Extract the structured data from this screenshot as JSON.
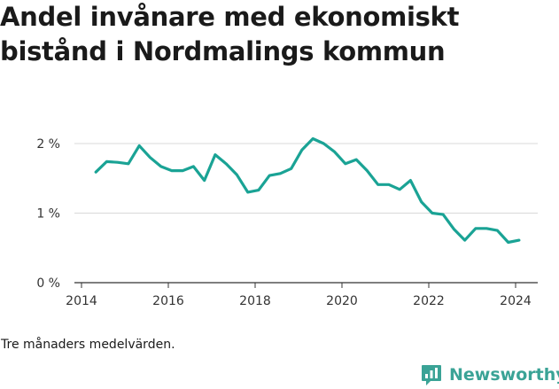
{
  "chart_data": {
    "type": "line",
    "title": "Andel invånare med ekonomiskt bistånd i Nordmalings kommun",
    "xlabel": "",
    "ylabel": "",
    "x_ticks": [
      "2014",
      "2016",
      "2018",
      "2020",
      "2022",
      "2024"
    ],
    "y_ticks": [
      "0 %",
      "1 %",
      "2 %"
    ],
    "xlim": [
      2014,
      2024.6
    ],
    "ylim": [
      0,
      2.2
    ],
    "grid": "horizontal",
    "line_color": "#1aa395",
    "series": [
      {
        "x": [
          2014.33,
          2014.58,
          2014.83,
          2015.08,
          2015.33,
          2015.58,
          2015.83,
          2016.08,
          2016.33,
          2016.58,
          2016.83,
          2017.08,
          2017.33,
          2017.58,
          2017.83,
          2018.08,
          2018.33,
          2018.58,
          2018.83,
          2019.08,
          2019.33,
          2019.58,
          2019.83,
          2020.08,
          2020.33,
          2020.58,
          2020.83,
          2021.08,
          2021.33,
          2021.58,
          2021.83,
          2022.08,
          2022.33,
          2022.58,
          2022.83,
          2023.08,
          2023.33,
          2023.58,
          2023.83,
          2024.08
        ],
        "values": [
          1.59,
          1.74,
          1.73,
          1.71,
          1.97,
          1.8,
          1.67,
          1.61,
          1.61,
          1.67,
          1.47,
          1.84,
          1.71,
          1.55,
          1.3,
          1.33,
          1.54,
          1.57,
          1.64,
          1.91,
          2.07,
          2.0,
          1.88,
          1.71,
          1.77,
          1.61,
          1.41,
          1.41,
          1.34,
          1.47,
          1.16,
          1.0,
          0.98,
          0.77,
          0.61,
          0.78,
          0.78,
          0.75,
          0.58,
          0.61
        ]
      }
    ]
  },
  "footnote": "Tre månaders medelvärden.",
  "brand": {
    "name": "Newsworthy",
    "icon": "newsworthy-logo-icon",
    "color": "#3aa396"
  }
}
